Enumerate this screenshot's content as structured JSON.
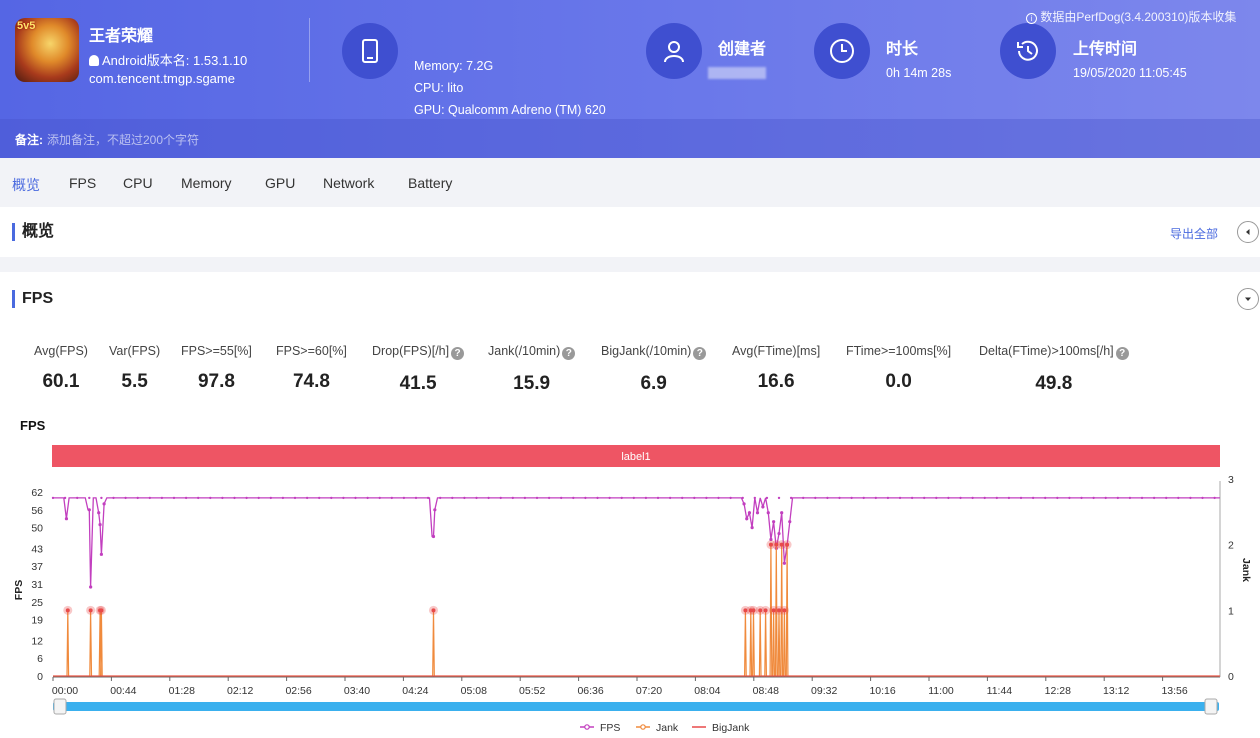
{
  "header": {
    "app_name": "王者荣耀",
    "android_version": "Android版本名: 1.53.1.10",
    "package": "com.tencent.tmgp.sgame",
    "memory": "Memory: 7.2G",
    "cpu": "CPU: lito",
    "gpu": "GPU: Qualcomm Adreno (TM) 620",
    "creator_label": "创建者",
    "duration_label": "时长",
    "duration_value": "0h 14m 28s",
    "upload_label": "上传时间",
    "upload_value": "19/05/2020 11:05:45",
    "source_note": "数据由PerfDog(3.4.200310)版本收集",
    "app_icon_text": "5v5",
    "note_label": "备注:",
    "note_placeholder": "添加备注，不超过200个字符"
  },
  "tabs": [
    {
      "label": "概览",
      "active": true
    },
    {
      "label": "FPS"
    },
    {
      "label": "CPU"
    },
    {
      "label": "Memory"
    },
    {
      "label": "GPU"
    },
    {
      "label": "Network"
    },
    {
      "label": "Battery"
    }
  ],
  "overview": {
    "title": "概览",
    "export_label": "导出全部"
  },
  "fps_section": {
    "title": "FPS",
    "stats": [
      {
        "label": "Avg(FPS)",
        "value": "60.1",
        "help": false
      },
      {
        "label": "Var(FPS)",
        "value": "5.5",
        "help": false
      },
      {
        "label": "FPS>=55[%]",
        "value": "97.8",
        "help": false
      },
      {
        "label": "FPS>=60[%]",
        "value": "74.8",
        "help": false
      },
      {
        "label": "Drop(FPS)[/h]",
        "value": "41.5",
        "help": true
      },
      {
        "label": "Jank(/10min)",
        "value": "15.9",
        "help": true
      },
      {
        "label": "BigJank(/10min)",
        "value": "6.9",
        "help": true
      },
      {
        "label": "Avg(FTime)[ms]",
        "value": "16.6",
        "help": false
      },
      {
        "label": "FTime>=100ms[%]",
        "value": "0.0",
        "help": false
      },
      {
        "label": "Delta(FTime)>100ms[/h]",
        "value": "49.8",
        "help": true
      }
    ]
  },
  "colors": {
    "accent": "#4a6adf",
    "fps": "#c23fbf",
    "jank": "#f08a3c",
    "bigjank": "#e84a4a",
    "label_bar": "#ee5564",
    "slider": "#3ab0ee"
  },
  "chart_data": {
    "type": "line",
    "title": "FPS",
    "label_bar": "label1",
    "ylabel": "FPS",
    "y2label": "Jank",
    "ylim": [
      0,
      62
    ],
    "y2lim": [
      0,
      3
    ],
    "yticks": [
      "62",
      "56",
      "50",
      "43",
      "37",
      "31",
      "25",
      "19",
      "12",
      "6",
      "0"
    ],
    "y2ticks": [
      "3",
      "2",
      "1",
      "0"
    ],
    "xticks": [
      "00:00",
      "00:44",
      "01:28",
      "02:12",
      "02:56",
      "03:40",
      "04:24",
      "05:08",
      "05:52",
      "06:36",
      "07:20",
      "08:04",
      "08:48",
      "09:32",
      "10:16",
      "11:00",
      "11:44",
      "12:28",
      "13:12",
      "13:56"
    ],
    "x_range_seconds": [
      0,
      868
    ],
    "series": [
      {
        "name": "FPS",
        "baseline": 60,
        "dips": [
          [
            10,
            53
          ],
          [
            27,
            56
          ],
          [
            28,
            30
          ],
          [
            34,
            55
          ],
          [
            35,
            51
          ],
          [
            36,
            41
          ],
          [
            38,
            58
          ],
          [
            283,
            47
          ],
          [
            284,
            56
          ],
          [
            514,
            58
          ],
          [
            516,
            53
          ],
          [
            518,
            55
          ],
          [
            520,
            50
          ],
          [
            524,
            55
          ],
          [
            528,
            57
          ],
          [
            532,
            55
          ],
          [
            534,
            46
          ],
          [
            536,
            52
          ],
          [
            538,
            43
          ],
          [
            540,
            48
          ],
          [
            542,
            55
          ],
          [
            544,
            38
          ],
          [
            546,
            44
          ],
          [
            548,
            52
          ]
        ]
      },
      {
        "name": "Jank",
        "points": [
          [
            11,
            1
          ],
          [
            28,
            1
          ],
          [
            35,
            1
          ],
          [
            36,
            1
          ],
          [
            283,
            1
          ],
          [
            515,
            1
          ],
          [
            519,
            1
          ],
          [
            521,
            1
          ],
          [
            526,
            1
          ],
          [
            530,
            1
          ],
          [
            534,
            2
          ],
          [
            536,
            1
          ],
          [
            538,
            2
          ],
          [
            540,
            1
          ],
          [
            542,
            2
          ],
          [
            544,
            1
          ],
          [
            546,
            2
          ]
        ]
      },
      {
        "name": "BigJank",
        "points": []
      }
    ]
  }
}
